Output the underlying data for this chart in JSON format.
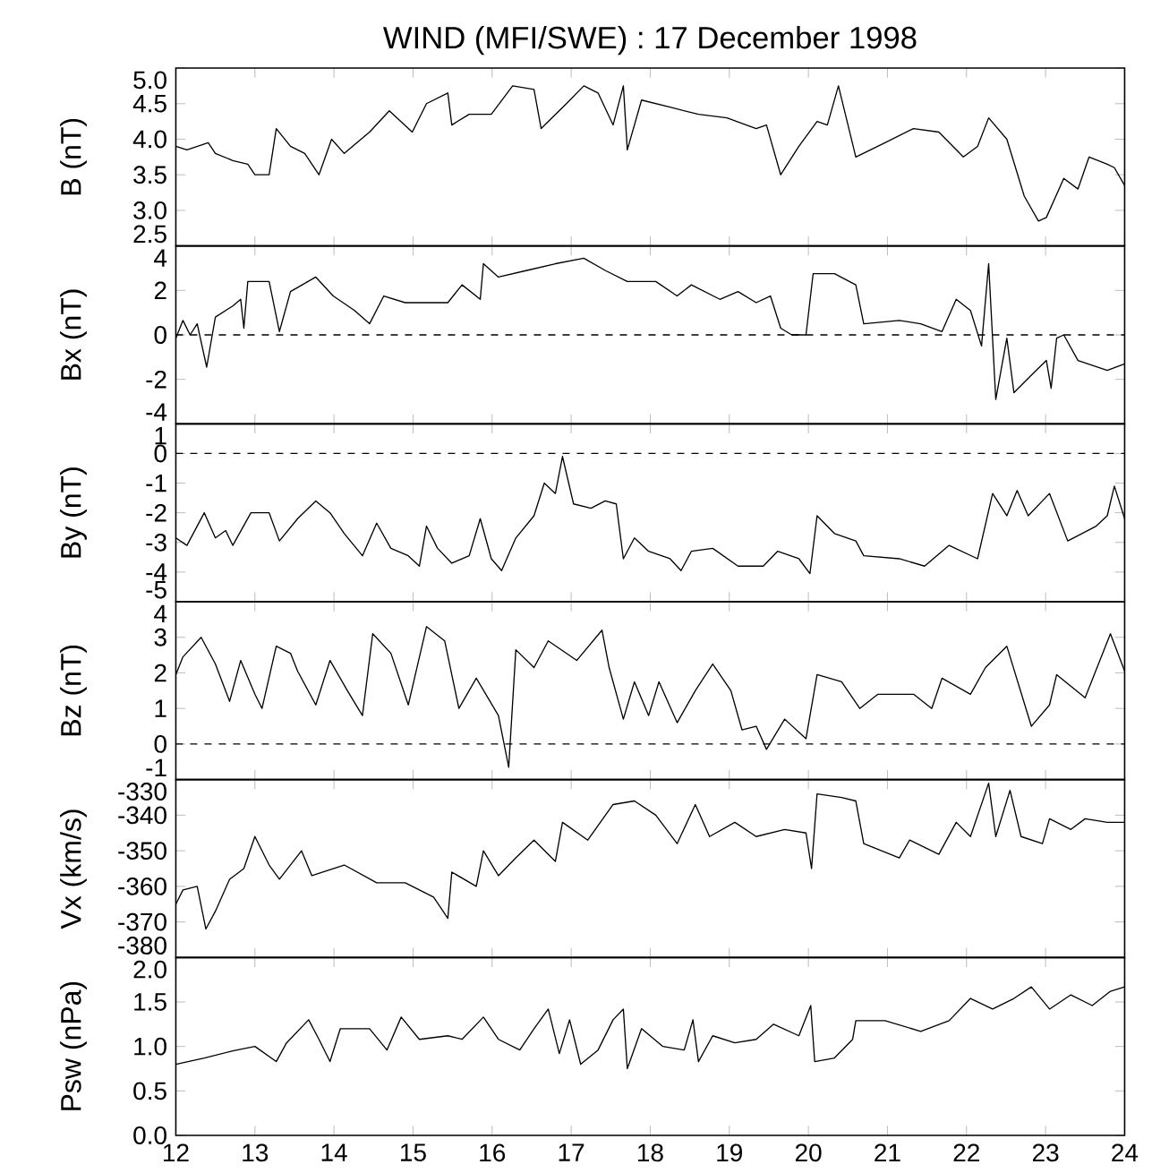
{
  "chart_data": [
    {
      "type": "line",
      "title": "WIND (MFI/SWE) : 17 December 1998",
      "ylabel": "B (nT)",
      "tick_labels": "y",
      "xlim": [
        12,
        24
      ],
      "xticks": [
        12,
        13,
        14,
        15,
        16,
        17,
        18,
        19,
        20,
        21,
        22,
        23,
        24
      ],
      "ylim": [
        2.5,
        5.0
      ],
      "yticks": [
        2.5,
        {
          "value": 3,
          "label": "3.0"
        },
        3.5,
        {
          "value": 4,
          "label": "4.0"
        },
        4.5,
        {
          "value": 5,
          "label": "5.0"
        }
      ],
      "series": [
        {
          "color": "#000000",
          "x": [
            12.0,
            12.14,
            12.41,
            12.5,
            12.72,
            12.91,
            13.0,
            13.18,
            13.27,
            13.45,
            13.63,
            13.81,
            13.97,
            14.13,
            14.45,
            14.7,
            14.99,
            15.17,
            15.44,
            15.49,
            15.71,
            15.99,
            16.26,
            16.53,
            16.62,
            16.94,
            17.16,
            17.34,
            17.53,
            17.66,
            17.71,
            17.89,
            18.25,
            18.61,
            18.97,
            19.34,
            19.47,
            19.65,
            19.88,
            20.11,
            20.24,
            20.38,
            20.6,
            20.97,
            21.33,
            21.65,
            21.96,
            22.14,
            22.28,
            22.51,
            22.73,
            22.91,
            23.01,
            23.23,
            23.41,
            23.55,
            23.78,
            23.87,
            24.0
          ],
          "values": [
            3.9,
            3.85,
            3.95,
            3.8,
            3.7,
            3.65,
            3.5,
            3.5,
            4.15,
            3.9,
            3.8,
            3.5,
            4.0,
            3.8,
            4.1,
            4.4,
            4.1,
            4.5,
            4.65,
            4.2,
            4.35,
            4.35,
            4.75,
            4.7,
            4.15,
            4.5,
            4.75,
            4.65,
            4.2,
            4.75,
            3.85,
            4.55,
            4.45,
            4.35,
            4.3,
            4.15,
            4.2,
            3.5,
            3.9,
            4.25,
            4.2,
            4.75,
            3.75,
            3.95,
            4.15,
            4.1,
            3.75,
            3.9,
            4.3,
            4.0,
            3.2,
            2.85,
            2.9,
            3.45,
            3.3,
            3.75,
            3.65,
            3.6,
            3.35
          ]
        }
      ]
    },
    {
      "type": "line",
      "ylabel": "Bx (nT)",
      "tick_labels": "y",
      "xlim": [
        12,
        24
      ],
      "xticks": [
        12,
        13,
        14,
        15,
        16,
        17,
        18,
        19,
        20,
        21,
        22,
        23,
        24
      ],
      "ylim": [
        -4,
        4
      ],
      "yticks": [
        -4,
        -2,
        0,
        2,
        4
      ],
      "ref_lines": [
        {
          "axis": "y",
          "value": 0,
          "line_style": "dashed"
        }
      ],
      "series": [
        {
          "color": "#000000",
          "x": [
            12.0,
            12.09,
            12.18,
            12.27,
            12.39,
            12.5,
            12.72,
            12.82,
            12.86,
            12.91,
            13.18,
            13.31,
            13.45,
            13.77,
            13.99,
            14.26,
            14.45,
            14.63,
            14.9,
            15.17,
            15.44,
            15.62,
            15.85,
            15.89,
            16.08,
            16.44,
            16.8,
            17.16,
            17.43,
            17.71,
            18.07,
            18.34,
            18.52,
            18.88,
            19.11,
            19.34,
            19.52,
            19.65,
            19.79,
            19.97,
            20.06,
            20.33,
            20.6,
            20.7,
            21.15,
            21.42,
            21.69,
            21.87,
            22.05,
            22.19,
            22.28,
            22.37,
            22.51,
            22.6,
            22.78,
            23.01,
            23.07,
            23.14,
            23.23,
            23.41,
            23.78,
            24.0
          ],
          "values": [
            -0.15,
            0.65,
            0.0,
            0.5,
            -1.45,
            0.8,
            1.3,
            1.6,
            0.3,
            2.4,
            2.4,
            0.15,
            1.95,
            2.6,
            1.75,
            1.1,
            0.5,
            1.75,
            1.45,
            1.45,
            1.45,
            2.25,
            1.6,
            3.2,
            2.6,
            2.9,
            3.2,
            3.45,
            2.9,
            2.4,
            2.4,
            1.75,
            2.25,
            1.6,
            1.95,
            1.45,
            1.75,
            0.3,
            0.0,
            0.0,
            2.75,
            2.75,
            2.25,
            0.5,
            0.65,
            0.5,
            0.15,
            1.6,
            1.1,
            -0.5,
            3.2,
            -2.9,
            -0.15,
            -2.6,
            -1.95,
            -1.15,
            -2.4,
            -0.15,
            0.0,
            -1.15,
            -1.6,
            -1.3
          ]
        }
      ]
    },
    {
      "type": "line",
      "ylabel": "By (nT)",
      "tick_labels": "y",
      "xlim": [
        12,
        24
      ],
      "xticks": [
        12,
        13,
        14,
        15,
        16,
        17,
        18,
        19,
        20,
        21,
        22,
        23,
        24
      ],
      "ylim": [
        -5,
        1
      ],
      "yticks": [
        -5,
        -4,
        -3,
        -2,
        -1,
        0,
        1
      ],
      "ref_lines": [
        {
          "axis": "y",
          "value": 0,
          "line_style": "dashed"
        }
      ],
      "series": [
        {
          "color": "#000000",
          "x": [
            12.0,
            12.14,
            12.36,
            12.5,
            12.63,
            12.72,
            12.95,
            13.18,
            13.31,
            13.54,
            13.77,
            13.95,
            14.13,
            14.36,
            14.54,
            14.72,
            14.94,
            15.08,
            15.17,
            15.31,
            15.49,
            15.71,
            15.85,
            15.99,
            16.12,
            16.3,
            16.53,
            16.66,
            16.8,
            16.89,
            17.03,
            17.25,
            17.43,
            17.57,
            17.66,
            17.8,
            17.98,
            18.25,
            18.39,
            18.52,
            18.79,
            19.11,
            19.43,
            19.61,
            19.88,
            20.02,
            20.11,
            20.33,
            20.6,
            20.7,
            21.15,
            21.47,
            21.78,
            22.14,
            22.33,
            22.51,
            22.64,
            22.78,
            23.05,
            23.28,
            23.64,
            23.78,
            23.87,
            24.0
          ],
          "values": [
            -2.85,
            -3.1,
            -2.0,
            -2.85,
            -2.6,
            -3.1,
            -2.0,
            -2.0,
            -2.95,
            -2.2,
            -1.6,
            -2.0,
            -2.7,
            -3.45,
            -2.35,
            -3.2,
            -3.45,
            -3.8,
            -2.45,
            -3.2,
            -3.7,
            -3.45,
            -2.2,
            -3.55,
            -3.95,
            -2.85,
            -2.1,
            -1.0,
            -1.35,
            -0.1,
            -1.7,
            -1.85,
            -1.6,
            -1.7,
            -3.55,
            -2.85,
            -3.3,
            -3.55,
            -3.95,
            -3.3,
            -3.2,
            -3.8,
            -3.8,
            -3.3,
            -3.55,
            -4.05,
            -2.1,
            -2.7,
            -2.95,
            -3.45,
            -3.55,
            -3.8,
            -3.1,
            -3.55,
            -1.35,
            -2.1,
            -1.25,
            -2.1,
            -1.35,
            -2.95,
            -2.45,
            -2.1,
            -1.1,
            -2.2
          ]
        }
      ]
    },
    {
      "type": "line",
      "ylabel": "Bz (nT)",
      "tick_labels": "y",
      "xlim": [
        12,
        24
      ],
      "xticks": [
        12,
        13,
        14,
        15,
        16,
        17,
        18,
        19,
        20,
        21,
        22,
        23,
        24
      ],
      "ylim": [
        -1,
        4
      ],
      "yticks": [
        -1,
        0,
        1,
        2,
        3,
        4
      ],
      "ref_lines": [
        {
          "axis": "y",
          "value": 0,
          "line_style": "dashed"
        }
      ],
      "series": [
        {
          "color": "#000000",
          "x": [
            12.0,
            12.09,
            12.32,
            12.5,
            12.68,
            12.82,
            13.0,
            13.09,
            13.27,
            13.45,
            13.54,
            13.77,
            13.95,
            14.17,
            14.36,
            14.49,
            14.72,
            14.94,
            15.17,
            15.4,
            15.58,
            15.8,
            16.08,
            16.21,
            16.3,
            16.53,
            16.71,
            17.07,
            17.39,
            17.48,
            17.66,
            17.8,
            17.98,
            18.11,
            18.34,
            18.57,
            18.79,
            19.02,
            19.16,
            19.34,
            19.47,
            19.7,
            19.97,
            20.11,
            20.42,
            20.65,
            20.88,
            21.33,
            21.56,
            21.69,
            22.05,
            22.24,
            22.51,
            22.82,
            23.05,
            23.14,
            23.5,
            23.82,
            24.0
          ],
          "values": [
            1.95,
            2.45,
            3.0,
            2.25,
            1.2,
            2.35,
            1.4,
            1.0,
            2.75,
            2.55,
            2.05,
            1.1,
            2.35,
            1.5,
            0.8,
            3.1,
            2.55,
            1.1,
            3.3,
            2.9,
            1.0,
            1.85,
            0.8,
            -0.65,
            2.65,
            2.15,
            2.9,
            2.35,
            3.2,
            2.15,
            0.7,
            1.75,
            0.8,
            1.75,
            0.6,
            1.5,
            2.25,
            1.5,
            0.4,
            0.5,
            -0.15,
            0.7,
            0.15,
            1.95,
            1.75,
            1.0,
            1.4,
            1.4,
            1.0,
            1.85,
            1.4,
            2.15,
            2.75,
            0.5,
            1.1,
            1.95,
            1.3,
            3.1,
            2.05
          ]
        }
      ]
    },
    {
      "type": "line",
      "ylabel": "Vx (km/s)",
      "tick_labels": "y",
      "xlim": [
        12,
        24
      ],
      "xticks": [
        12,
        13,
        14,
        15,
        16,
        17,
        18,
        19,
        20,
        21,
        22,
        23,
        24
      ],
      "ylim": [
        -380,
        -330
      ],
      "yticks": [
        -380,
        -370,
        -360,
        -350,
        -340,
        -330
      ],
      "series": [
        {
          "color": "#000000",
          "x": [
            12.0,
            12.09,
            12.27,
            12.38,
            12.5,
            12.68,
            12.86,
            13.0,
            13.18,
            13.31,
            13.59,
            13.72,
            14.13,
            14.54,
            14.9,
            15.26,
            15.44,
            15.49,
            15.8,
            15.89,
            16.08,
            16.3,
            16.53,
            16.8,
            16.89,
            17.21,
            17.53,
            17.8,
            18.07,
            18.34,
            18.57,
            18.75,
            19.07,
            19.34,
            19.7,
            19.97,
            20.04,
            20.11,
            20.42,
            20.6,
            20.7,
            21.15,
            21.28,
            21.65,
            21.87,
            22.05,
            22.28,
            22.37,
            22.55,
            22.69,
            22.96,
            23.05,
            23.32,
            23.5,
            23.78,
            24.0
          ],
          "values": [
            -365,
            -361,
            -360,
            -372,
            -367,
            -358,
            -355,
            -346,
            -354,
            -358,
            -350,
            -357,
            -354,
            -359,
            -359,
            -363,
            -369,
            -356,
            -360,
            -350,
            -357,
            -352,
            -347,
            -353,
            -342,
            -347,
            -337,
            -336,
            -340,
            -348,
            -337,
            -346,
            -342,
            -346,
            -344,
            -345,
            -355,
            -334,
            -335,
            -336,
            -348,
            -352,
            -347,
            -351,
            -342,
            -346,
            -331,
            -346,
            -333,
            -346,
            -348,
            -341,
            -344,
            -341,
            -342,
            -342
          ]
        }
      ]
    },
    {
      "type": "line",
      "ylabel": "Psw (nPa)",
      "xlim": [
        12,
        24
      ],
      "xticks": [
        12,
        13,
        14,
        15,
        16,
        17,
        18,
        19,
        20,
        21,
        22,
        23,
        24
      ],
      "ylim": [
        0,
        2
      ],
      "yticks": [
        {
          "value": 0,
          "label": "0.0"
        },
        0.5,
        {
          "value": 1,
          "label": "1.0"
        },
        1.5,
        {
          "value": 2,
          "label": "2.0"
        }
      ],
      "series": [
        {
          "color": "#000000",
          "x": [
            12.0,
            12.36,
            12.72,
            13.0,
            13.27,
            13.4,
            13.68,
            13.81,
            13.95,
            14.08,
            14.45,
            14.67,
            14.85,
            15.08,
            15.44,
            15.62,
            15.89,
            16.08,
            16.35,
            16.53,
            16.71,
            16.85,
            16.98,
            17.12,
            17.34,
            17.53,
            17.66,
            17.71,
            17.89,
            18.16,
            18.43,
            18.54,
            18.61,
            18.79,
            19.07,
            19.34,
            19.56,
            19.88,
            20.03,
            20.08,
            20.33,
            20.56,
            20.6,
            20.97,
            21.42,
            21.78,
            22.05,
            22.33,
            22.6,
            22.82,
            23.05,
            23.32,
            23.59,
            23.82,
            24.0
          ],
          "values": [
            0.8,
            0.87,
            0.95,
            1.0,
            0.83,
            1.04,
            1.3,
            1.08,
            0.83,
            1.2,
            1.2,
            0.96,
            1.33,
            1.08,
            1.12,
            1.08,
            1.33,
            1.08,
            0.96,
            1.2,
            1.42,
            0.92,
            1.3,
            0.8,
            0.96,
            1.3,
            1.42,
            0.75,
            1.2,
            1.0,
            0.96,
            1.3,
            0.83,
            1.12,
            1.04,
            1.08,
            1.25,
            1.12,
            1.46,
            0.83,
            0.87,
            1.08,
            1.29,
            1.29,
            1.17,
            1.29,
            1.54,
            1.42,
            1.54,
            1.67,
            1.42,
            1.58,
            1.46,
            1.62,
            1.67
          ]
        }
      ]
    }
  ]
}
